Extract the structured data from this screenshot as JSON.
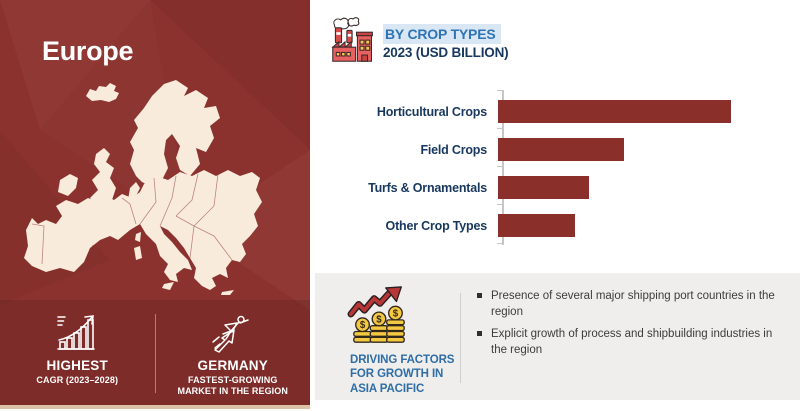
{
  "region_panel": {
    "title": "Europe",
    "stats": [
      {
        "icon": "growth-chart-icon",
        "heading": "HIGHEST",
        "subheading": "CAGR (2023–2028)"
      },
      {
        "icon": "flying-person-icon",
        "heading": "GERMANY",
        "subheading": "FASTEST-GROWING MARKET IN THE REGION"
      }
    ]
  },
  "chart_header": {
    "icon": "factory-icon",
    "title": "BY CROP TYPES",
    "subtitle": "2023 (USD BILLION)"
  },
  "chart_data": {
    "type": "bar",
    "orientation": "horizontal",
    "title": "BY CROP TYPES",
    "subtitle": "2023 (USD BILLION)",
    "categories": [
      "Horticultural Crops",
      "Field Crops",
      "Turfs & Ornamentals",
      "Other Crop Types"
    ],
    "values": [
      100,
      54,
      39,
      33
    ],
    "value_scale": "relative bar lengths; no numeric axis labels shown",
    "xlabel": "",
    "ylabel": "",
    "grid": false,
    "legend": false,
    "bar_color": "#8B2F2B"
  },
  "driving_factors_panel": {
    "icon": "coins-growth-icon",
    "label": "DRIVING FACTORS FOR GROWTH IN ASIA PACIFIC",
    "bullets": [
      "Presence of several major shipping port countries in the region",
      "Explicit growth of process and shipbuilding industries in the region"
    ]
  },
  "colors": {
    "panel_red": "#8C322E",
    "bar_red": "#8B2F2B",
    "map_cream": "#F8EBDC",
    "accent_blue": "#2E74B5",
    "navy": "#17375E",
    "panel_gray": "#EFEEEC",
    "title_highlight": "#D9E7F5",
    "tan_strip": "#DCC3A8",
    "bullet_text": "#3C3C3C"
  }
}
